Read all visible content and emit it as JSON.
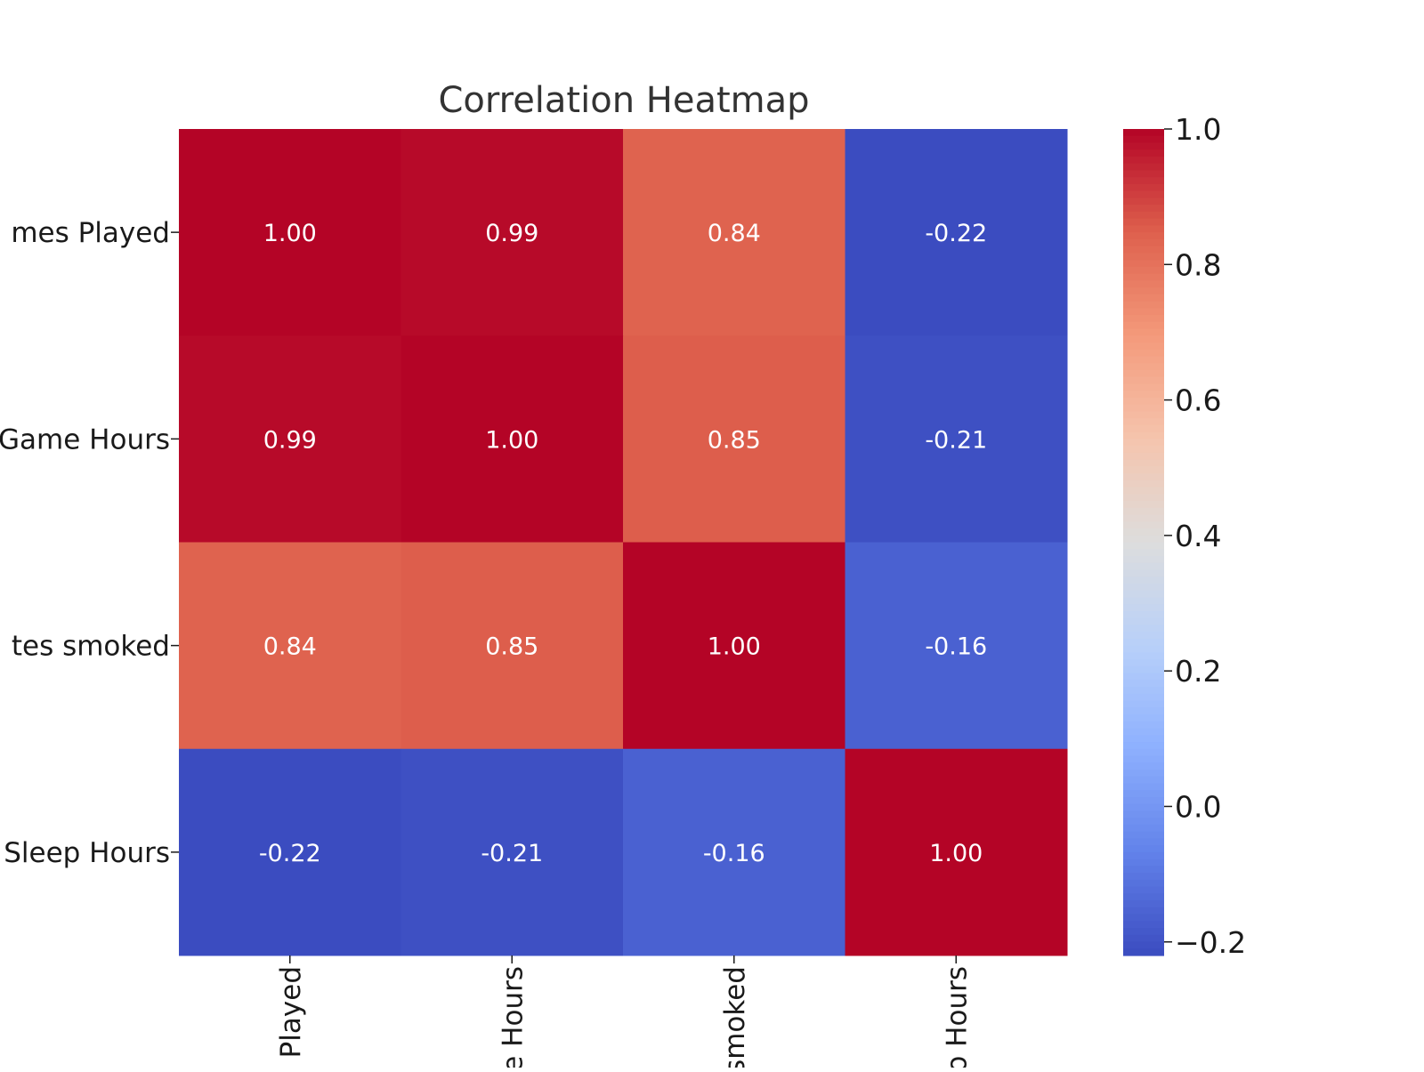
{
  "chart_data": {
    "type": "heatmap",
    "title": "Correlation Heatmap",
    "rows": [
      "mes Played",
      "Game Hours",
      "tes smoked",
      "Sleep Hours"
    ],
    "columns": [
      "Played",
      "e Hours",
      "smoked",
      "o Hours"
    ],
    "values": [
      [
        1.0,
        0.99,
        0.84,
        -0.22
      ],
      [
        0.99,
        1.0,
        0.85,
        -0.21
      ],
      [
        0.84,
        0.85,
        1.0,
        -0.16
      ],
      [
        -0.22,
        -0.21,
        -0.16,
        1.0
      ]
    ],
    "value_labels": [
      [
        "1.00",
        "0.99",
        "0.84",
        "-0.22"
      ],
      [
        "0.99",
        "1.00",
        "0.85",
        "-0.21"
      ],
      [
        "0.84",
        "0.85",
        "1.00",
        "-0.16"
      ],
      [
        "-0.22",
        "-0.21",
        "-0.16",
        "1.00"
      ]
    ],
    "colormap": "coolwarm",
    "vmin": -0.22,
    "vmax": 1.0,
    "colorbar": {
      "ticks": [
        1.0,
        0.8,
        0.6,
        0.4,
        0.2,
        0.0,
        -0.2
      ],
      "tick_labels": [
        "1.0",
        "0.8",
        "0.6",
        "0.4",
        "0.2",
        "0.0",
        "−0.2"
      ]
    },
    "grid": false,
    "legend": "colorbar-right"
  }
}
